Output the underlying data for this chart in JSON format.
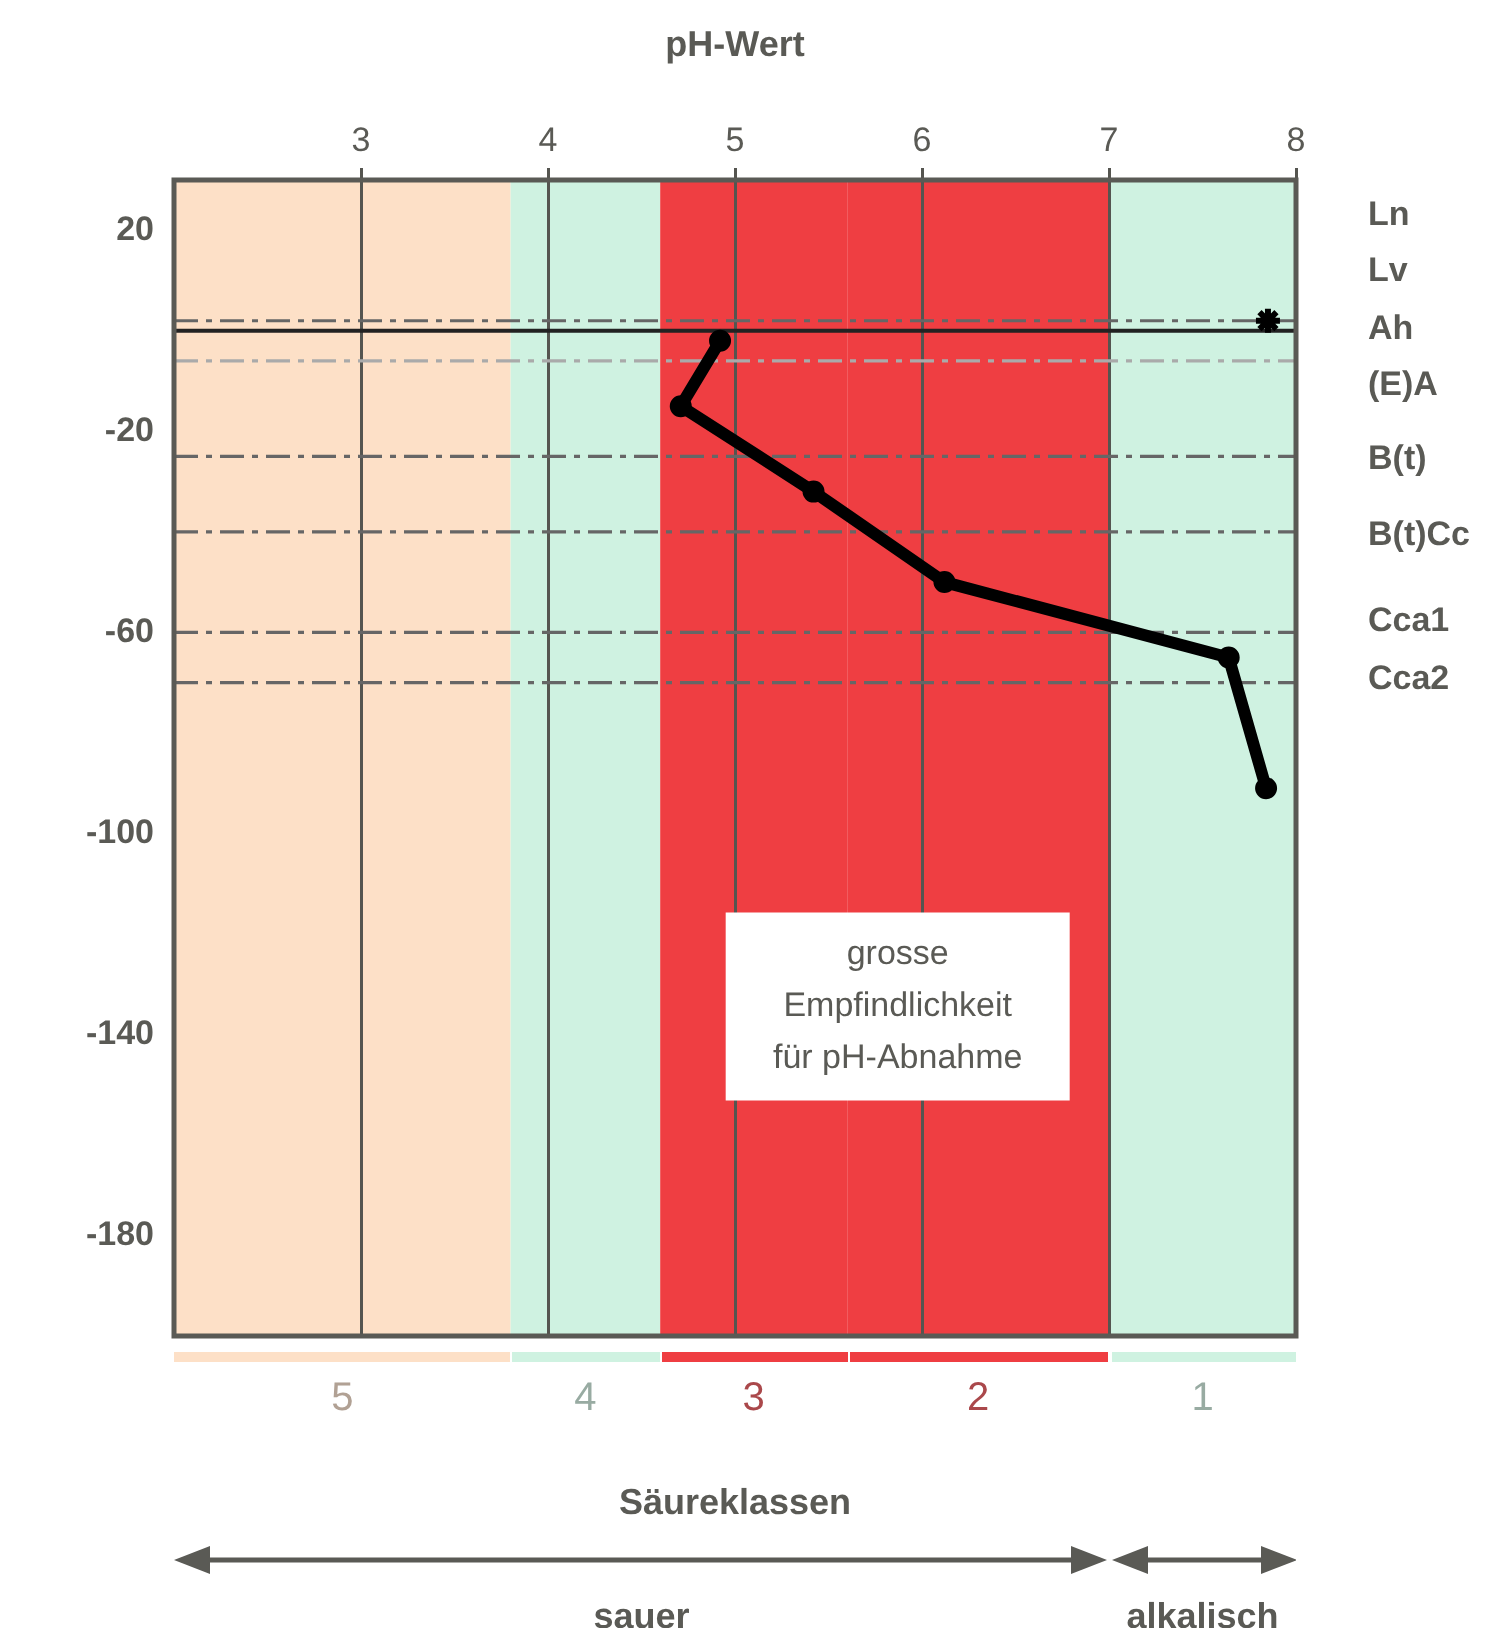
{
  "chart_data": {
    "type": "line",
    "xlabel": "pH-Wert",
    "xlim": [
      2,
      8
    ],
    "xticks": [
      3,
      4,
      5,
      6,
      7,
      8
    ],
    "ylim": [
      -200,
      30
    ],
    "yticks": [
      20,
      -20,
      -60,
      -100,
      -140,
      -180
    ],
    "grid": "x",
    "legend": "bottom",
    "series": [
      {
        "color": "#000000",
        "marker": "circle",
        "line_style": "solid",
        "x": [
          4.92,
          4.71,
          5.42,
          6.12,
          7.64,
          7.84
        ],
        "values": [
          -2,
          -15,
          -32,
          -50,
          -65,
          -91
        ]
      },
      {
        "type": "scatter",
        "color": "#000000",
        "marker": "cross",
        "x": [
          7.85
        ],
        "values": [
          2
        ]
      }
    ],
    "bands": [
      {
        "axis": "x",
        "from": 2,
        "to": 3.8,
        "label": "5",
        "color": "#fde0c7"
      },
      {
        "axis": "x",
        "from": 3.8,
        "to": 4.6,
        "label": "4",
        "color": "#cff2e1"
      },
      {
        "axis": "x",
        "from": 4.6,
        "to": 5.6,
        "label": "3",
        "color": "#ef3e42"
      },
      {
        "axis": "x",
        "from": 5.6,
        "to": 7,
        "label": "2",
        "color": "#ef3e42"
      },
      {
        "axis": "x",
        "from": 7,
        "to": 8,
        "label": "1",
        "color": "#cff2e1"
      }
    ],
    "ref_lines": [
      {
        "axis": "y",
        "value": 2,
        "color": "#666666",
        "line_style": "dashed"
      },
      {
        "axis": "y",
        "value": 0,
        "color": "#222222",
        "line_style": "solid"
      },
      {
        "axis": "y",
        "value": -6,
        "color": "#aaaaaa",
        "line_style": "dashed"
      },
      {
        "axis": "y",
        "value": -25,
        "color": "#666666",
        "line_style": "dashed"
      },
      {
        "axis": "y",
        "value": -40,
        "color": "#666666",
        "line_style": "dashed"
      },
      {
        "axis": "y",
        "value": -60,
        "color": "#666666",
        "line_style": "dashed"
      },
      {
        "axis": "y",
        "value": -70,
        "color": "#666666",
        "line_style": "dashed"
      }
    ],
    "annotations": [
      "grosse Empfindlichkeit für pH-Abnahme",
      "Säureklassen",
      "sauer",
      "alkalisch",
      "Ln",
      "Lv",
      "Ah",
      "(E)A",
      "B(t)",
      "B(t)Cc",
      "Cca1",
      "Cca2"
    ]
  }
}
